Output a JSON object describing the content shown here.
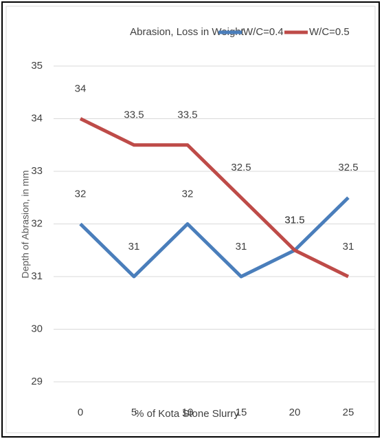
{
  "chart_data": {
    "type": "line",
    "title": "Abrasion, Loss in Weight",
    "x_label": "% of Kota Stone Slurry",
    "y_label": "Depth of Abrasion, in mm",
    "categories": [
      "0",
      "5",
      "10",
      "15",
      "20",
      "25"
    ],
    "series": [
      {
        "name": "W/C=0.4",
        "color": "#4a7ebb",
        "values": [
          32,
          31,
          32,
          31,
          31.5,
          32.5
        ]
      },
      {
        "name": "W/C=0.5",
        "color": "#be4b48",
        "values": [
          34,
          33.5,
          33.5,
          32.5,
          31.5,
          31
        ]
      }
    ],
    "ylim": [
      29,
      35
    ],
    "yticks": [
      29,
      30,
      31,
      32,
      33,
      34,
      35
    ],
    "grid": true,
    "legend": "top-right"
  }
}
